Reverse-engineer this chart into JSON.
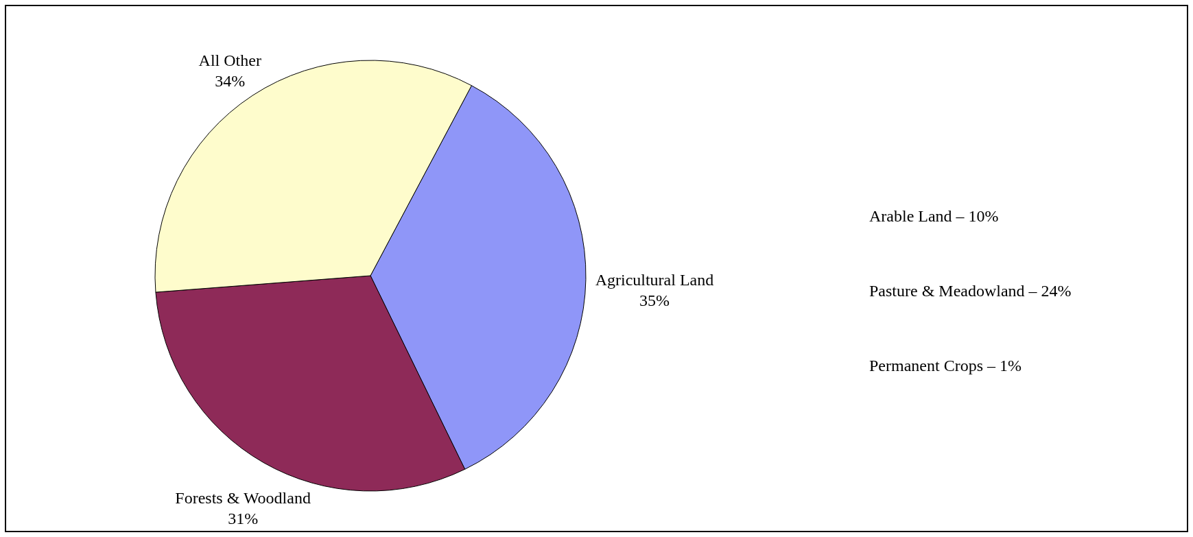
{
  "chart_data": {
    "type": "pie",
    "categories": [
      "Agricultural Land",
      "Forests & Woodland",
      "All Other"
    ],
    "values": [
      35,
      31,
      34
    ],
    "value_labels": [
      "35%",
      "31%",
      "34%"
    ],
    "colors": [
      "#8f96f8",
      "#8e2a58",
      "#fefccc"
    ],
    "annotations": [
      "Arable Land – 10%",
      "Pasture & Meadowland – 24%",
      "Permanent Crops – 1%"
    ]
  }
}
